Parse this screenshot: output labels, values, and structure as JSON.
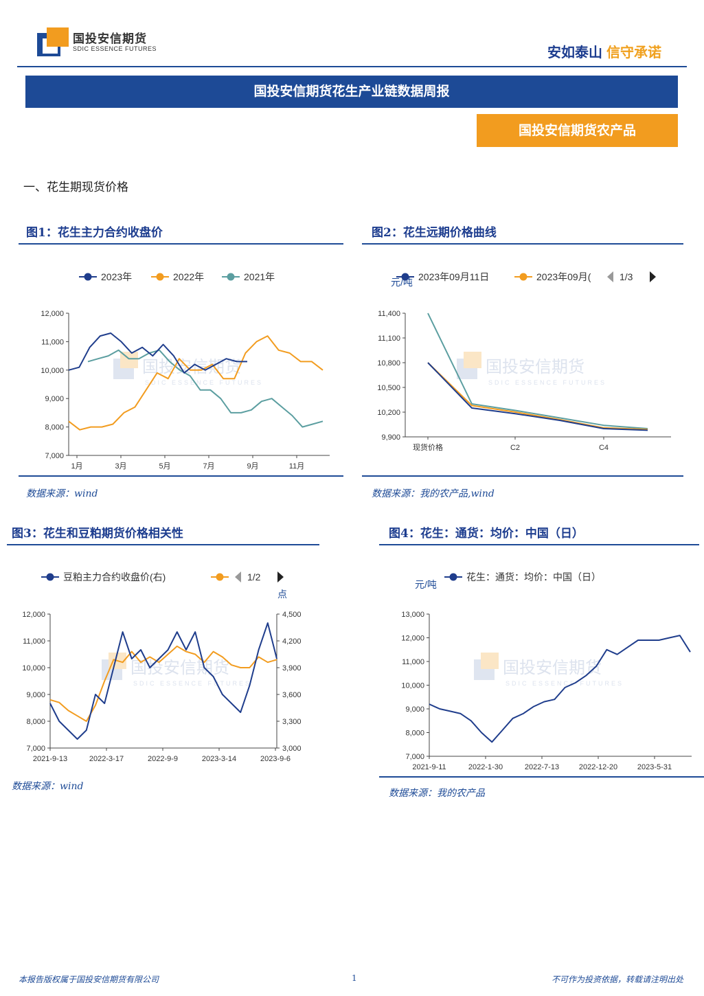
{
  "header": {
    "logo_text": "国投安信期货",
    "logo_sub": "SDIC ESSENCE FUTURES",
    "slogan_part1": "安如泰山",
    "slogan_part2": "信守承诺"
  },
  "banner_title": "国投安信期货花生产业链数据周报",
  "tag_label": "国投安信期货农产品",
  "section_heading": "一、花生期现货价格",
  "watermark": {
    "text": "国投安信期货",
    "sub": "SDIC ESSENCE FUTURES"
  },
  "colors": {
    "navy": "#1d4a96",
    "orange": "#f29c1f",
    "teal": "#5b9ea0",
    "series_navy": "#1f3d8c"
  },
  "figures": [
    {
      "title": "图1：花生主力合约收盘价",
      "source": "数据来源：wind",
      "legend": [
        "2023年",
        "2022年",
        "2021年"
      ]
    },
    {
      "title": "图2：花生远期价格曲线",
      "source": "数据来源：我的农产品,wind",
      "legend": [
        "2023年09月11日",
        "2023年09月("
      ],
      "pager": "1/3",
      "unit": "元/吨"
    },
    {
      "title": "图3：花生和豆粕期货价格相关性",
      "source": "数据来源：wind",
      "legend": [
        "豆粕主力合约收盘价(右)"
      ],
      "pager": "1/2",
      "unit_right": "点"
    },
    {
      "title": "图4：花生：通货：均价：中国（日）",
      "source": "数据来源：我的农产品",
      "legend": [
        "花生：通货：均价：中国（日）"
      ],
      "unit": "元/吨"
    }
  ],
  "chart_data": [
    {
      "type": "line",
      "x_ticks": [
        "1月",
        "3月",
        "5月",
        "7月",
        "9月",
        "11月"
      ],
      "y_ticks": [
        "7,000",
        "8,000",
        "9,000",
        "10,000",
        "11,000",
        "12,000"
      ],
      "ylim": [
        7000,
        12000
      ],
      "legend_position": "top",
      "series": [
        {
          "name": "2023年",
          "values": [
            10000,
            10100,
            10800,
            11200,
            11300,
            11000,
            10600,
            10800,
            10500,
            10900,
            10500,
            9900,
            10200,
            10000,
            10200,
            10400,
            10300,
            10300
          ]
        },
        {
          "name": "2022年",
          "values": [
            8200,
            7900,
            8000,
            8000,
            8100,
            8500,
            8700,
            9300,
            9900,
            9700,
            10400,
            10000,
            10000,
            10200,
            9700,
            9700,
            10600,
            11000,
            11200,
            10700,
            10600,
            10300,
            10300,
            10000
          ]
        },
        {
          "name": "2021年",
          "values": [
            10300,
            10400,
            10500,
            10700,
            10400,
            10400,
            10600,
            10700,
            10300,
            10000,
            9800,
            9300,
            9300,
            9000,
            8500,
            8500,
            8600,
            8900,
            9000,
            8700,
            8400,
            8000,
            8100,
            8200
          ]
        }
      ]
    },
    {
      "type": "line",
      "categories": [
        "现货价格",
        "",
        "C2",
        "",
        "C4",
        ""
      ],
      "x_ticks": [
        "现货价格",
        "C2",
        "C4"
      ],
      "y_ticks": [
        "9,900",
        "10,200",
        "10,500",
        "10,800",
        "11,100",
        "11,400"
      ],
      "ylim": [
        9900,
        11400
      ],
      "series": [
        {
          "name": "2023年09月11日",
          "values": [
            10800,
            10250,
            10180,
            10100,
            10000,
            9980
          ]
        },
        {
          "name": "2023年09月(",
          "values": [
            10800,
            10280,
            10200,
            10110,
            10010,
            9990
          ]
        },
        {
          "values": [
            11400,
            10300,
            10220,
            10130,
            10040,
            10000
          ]
        }
      ]
    },
    {
      "type": "line",
      "x_ticks": [
        "2021-9-13",
        "2022-3-17",
        "2022-9-9",
        "2023-3-14",
        "2023-9-6"
      ],
      "y_ticks_left": [
        "7,000",
        "8,000",
        "9,000",
        "10,000",
        "11,000",
        "12,000"
      ],
      "y_ticks_right": [
        "3,000",
        "3,300",
        "3,600",
        "3,900",
        "4,200",
        "4,500"
      ],
      "ylim_left": [
        7000,
        12000
      ],
      "ylim_right": [
        3000,
        4500
      ],
      "series": [
        {
          "name": "豆粕主力合约收盘价(右)",
          "axis": "right",
          "values": [
            3500,
            3300,
            3200,
            3100,
            3200,
            3600,
            3500,
            3900,
            4300,
            4000,
            4100,
            3900,
            4000,
            4100,
            4300,
            4100,
            4300,
            3900,
            3800,
            3600,
            3500,
            3400,
            3700,
            4100,
            4400,
            4000
          ]
        },
        {
          "axis": "left",
          "values": [
            8800,
            8700,
            8400,
            8200,
            8000,
            8600,
            9500,
            10300,
            10200,
            10600,
            10200,
            10400,
            10200,
            10500,
            10800,
            10600,
            10500,
            10200,
            10600,
            10400,
            10100,
            10000,
            10000,
            10400,
            10200,
            10300
          ]
        }
      ]
    },
    {
      "type": "line",
      "x_ticks": [
        "2021-9-11",
        "2022-1-30",
        "2022-7-13",
        "2022-12-20",
        "2023-5-31"
      ],
      "y_ticks": [
        "7,000",
        "8,000",
        "9,000",
        "10,000",
        "11,000",
        "12,000",
        "13,000"
      ],
      "ylim": [
        7000,
        13000
      ],
      "series": [
        {
          "name": "花生：通货：均价：中国（日）",
          "values": [
            9200,
            9000,
            8900,
            8800,
            8500,
            8000,
            7600,
            8100,
            8600,
            8800,
            9100,
            9300,
            9400,
            9900,
            10100,
            10400,
            10800,
            11500,
            11300,
            11600,
            11900,
            11900,
            11900,
            12000,
            12100,
            11400
          ]
        }
      ]
    }
  ],
  "footer": {
    "left": "本报告版权属于国投安信期货有限公司",
    "page": "1",
    "right": "不可作为投资依据，转载请注明出处"
  }
}
